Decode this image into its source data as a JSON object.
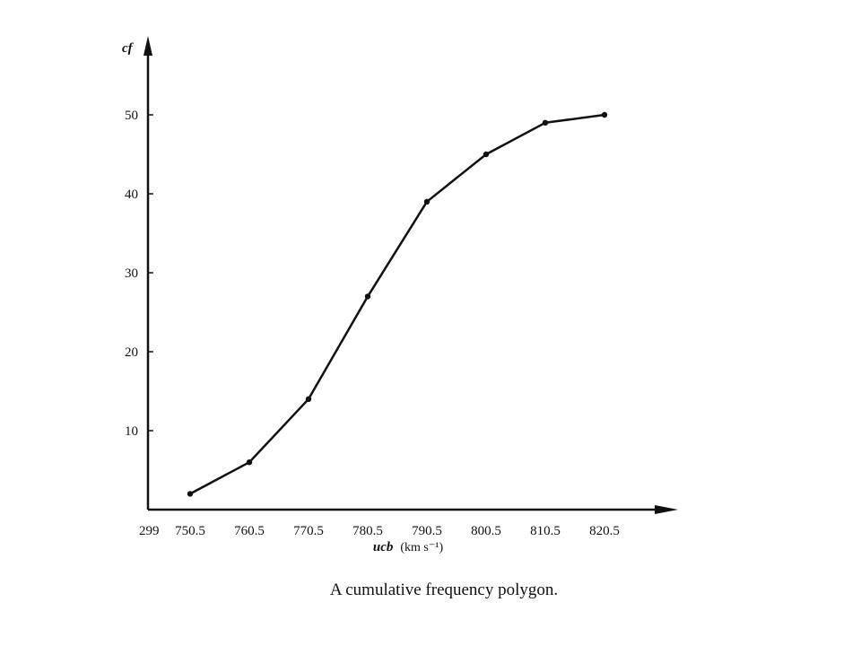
{
  "chart_data": {
    "type": "line",
    "ylabel": "cf",
    "xlabel_var": "ucb",
    "xlabel_unit": "(km s⁻¹)",
    "x_break_label": "299",
    "caption": "A cumulative frequency polygon.",
    "x": [
      "750.5",
      "760.5",
      "770.5",
      "780.5",
      "790.5",
      "800.5",
      "810.5",
      "820.5"
    ],
    "y": [
      2,
      6,
      14,
      27,
      39,
      45,
      49,
      50
    ],
    "y_ticks": [
      10,
      20,
      30,
      40,
      50
    ],
    "ylim": [
      0,
      50
    ],
    "xlim": [
      750.5,
      820.5
    ],
    "grid": false,
    "line_color": "#111111"
  }
}
